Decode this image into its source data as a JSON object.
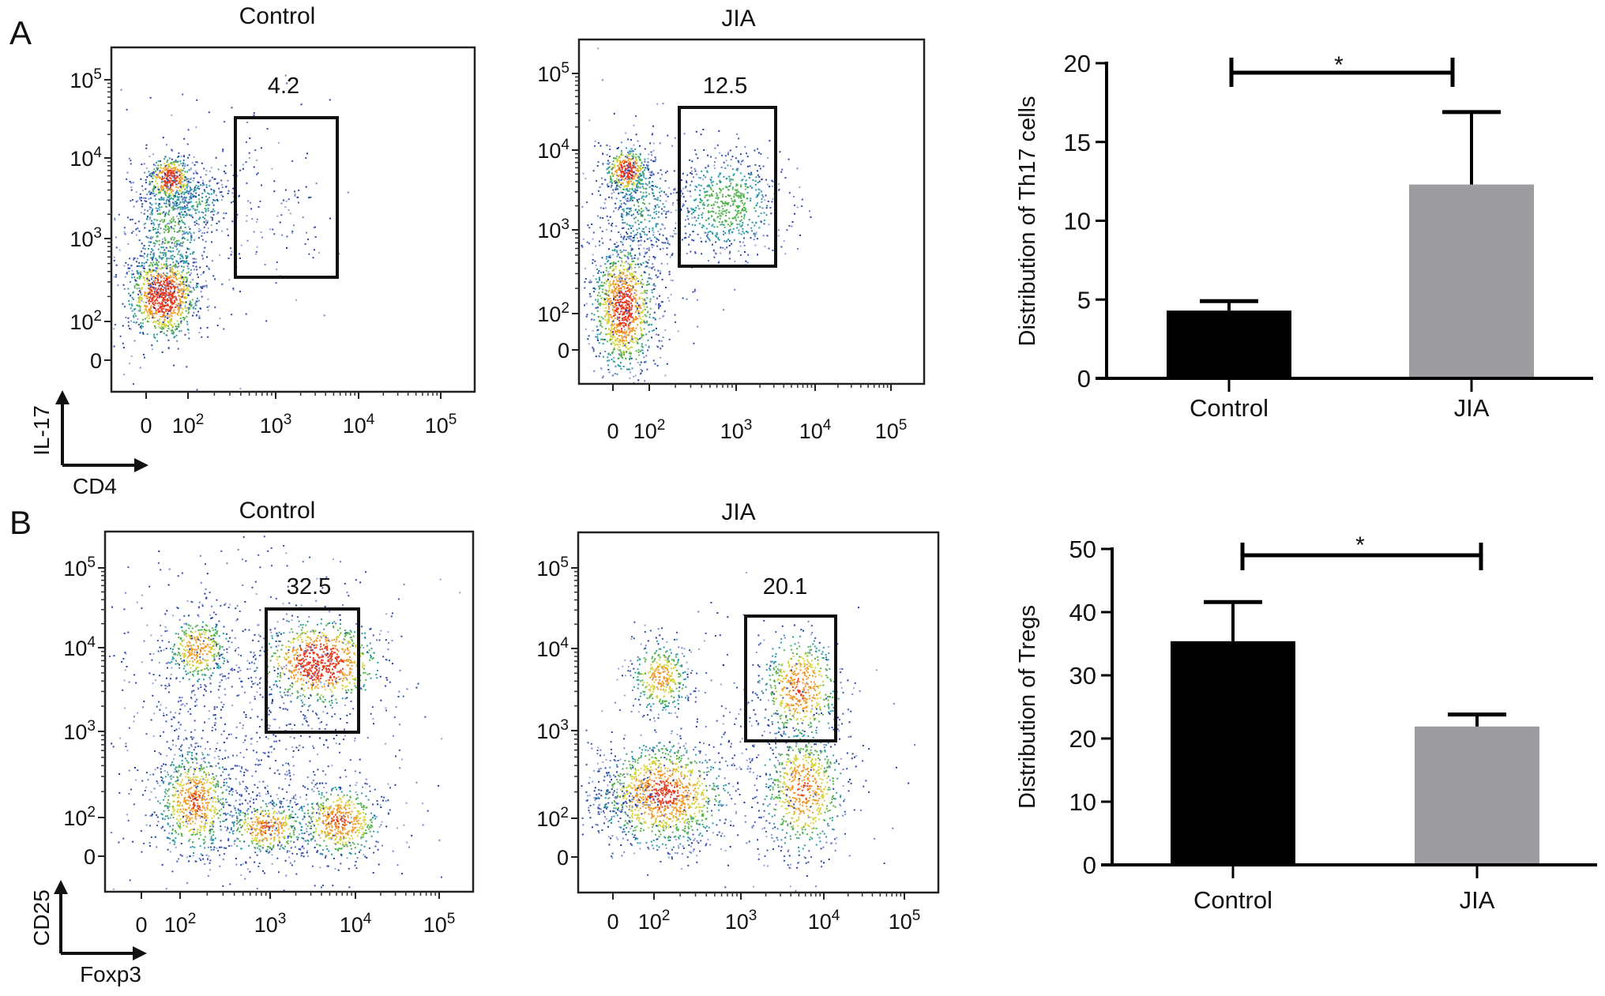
{
  "panels": {
    "A": {
      "letter": "A",
      "x_axis_label": "CD4",
      "y_axis_label": "IL-17",
      "plots": [
        {
          "title": "Control",
          "gate_value": "4.2"
        },
        {
          "title": "JIA",
          "gate_value": "12.5"
        }
      ]
    },
    "B": {
      "letter": "B",
      "x_axis_label": "Foxp3",
      "y_axis_label": "CD25",
      "plots": [
        {
          "title": "Control",
          "gate_value": "32.5"
        },
        {
          "title": "JIA",
          "gate_value": "20.1"
        }
      ]
    }
  },
  "flow_ticks": [
    {
      "base": "0",
      "exp": ""
    },
    {
      "base": "10",
      "exp": "2"
    },
    {
      "base": "10",
      "exp": "3"
    },
    {
      "base": "10",
      "exp": "4"
    },
    {
      "base": "10",
      "exp": "5"
    }
  ],
  "chart_data": [
    {
      "type": "bar",
      "categories": [
        "Control",
        "JIA"
      ],
      "values": [
        4.3,
        12.3
      ],
      "errors": [
        0.6,
        4.6
      ],
      "ylabel": "Distribution of Th17 cells",
      "xlabel": "",
      "ylim": [
        0,
        20
      ],
      "yticks": [
        0,
        5,
        10,
        15,
        20
      ],
      "colors": [
        "#000000",
        "#9c9ca1"
      ],
      "significance": {
        "label": "*",
        "between": [
          "Control",
          "JIA"
        ]
      },
      "grid": false
    },
    {
      "type": "bar",
      "categories": [
        "Control",
        "JIA"
      ],
      "values": [
        35.4,
        21.9
      ],
      "errors": [
        6.2,
        1.9
      ],
      "ylabel": "Distribution of Tregs",
      "xlabel": "",
      "ylim": [
        0,
        50
      ],
      "yticks": [
        0,
        10,
        20,
        30,
        40,
        50
      ],
      "colors": [
        "#000000",
        "#9c9ca1"
      ],
      "significance": {
        "label": "*",
        "between": [
          "Control",
          "JIA"
        ]
      },
      "grid": false
    }
  ]
}
